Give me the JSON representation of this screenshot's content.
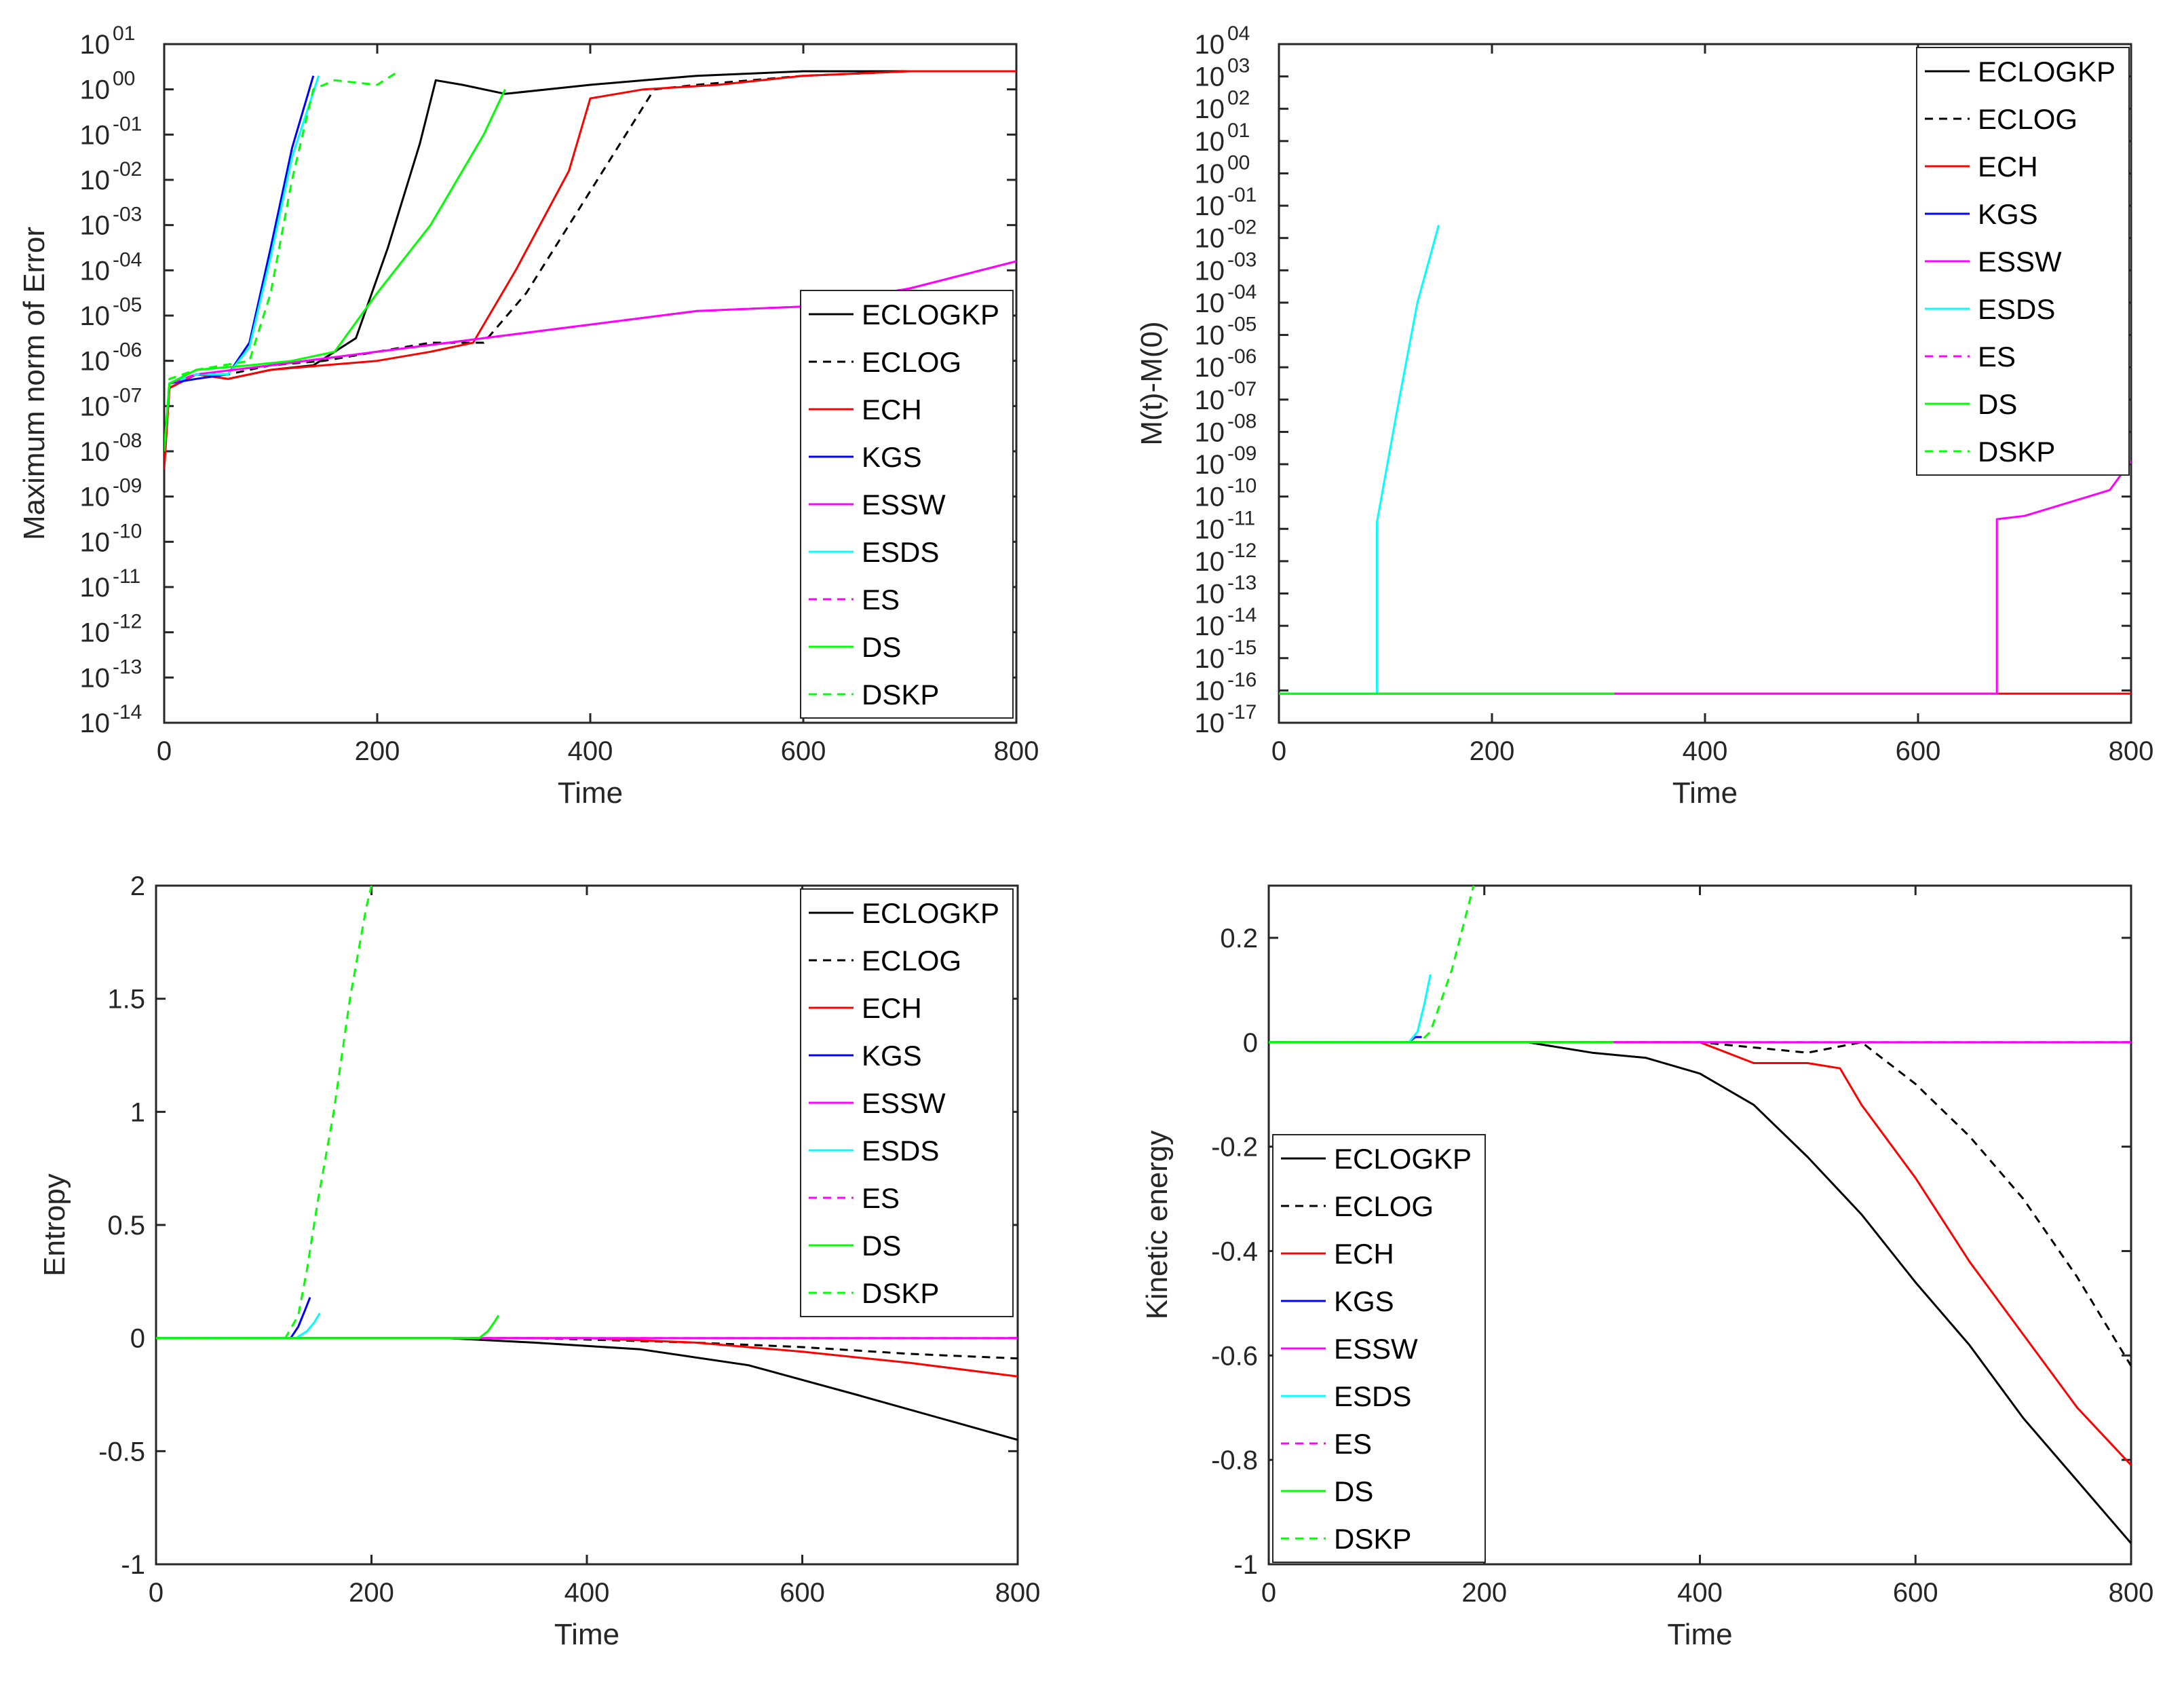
{
  "series_styles": [
    {
      "name": "ECLOGKP",
      "color": "#000000",
      "dash": ""
    },
    {
      "name": "ECLOG",
      "color": "#000000",
      "dash": "12,9"
    },
    {
      "name": "ECH",
      "color": "#ff0000",
      "dash": ""
    },
    {
      "name": "KGS",
      "color": "#0000ff",
      "dash": ""
    },
    {
      "name": "ESSW",
      "color": "#ff00ff",
      "dash": ""
    },
    {
      "name": "ESDS",
      "color": "#00ffff",
      "dash": ""
    },
    {
      "name": "ES",
      "color": "#ff00ff",
      "dash": "12,9"
    },
    {
      "name": "DS",
      "color": "#00ff00",
      "dash": ""
    },
    {
      "name": "DSKP",
      "color": "#00ff00",
      "dash": "12,9"
    }
  ],
  "chart_data": [
    {
      "type": "line",
      "scale": "log",
      "title": "",
      "xlabel": "Time",
      "ylabel": "Maximum norm of Error",
      "xlim": [
        0,
        800
      ],
      "xticks": [
        "0",
        "200",
        "400",
        "600",
        "800"
      ],
      "ylim": [
        -14,
        1
      ],
      "ytick_exponents": [
        "-14",
        "-13",
        "-12",
        "-11",
        "-10",
        "-09",
        "-08",
        "-07",
        "-06",
        "-05",
        "-04",
        "-03",
        "-02",
        "-01",
        "00",
        "01"
      ],
      "ytick_base": "10",
      "legend": {
        "location": "lower-right",
        "entries": [
          "ECLOGKP",
          "ECLOG",
          "ECH",
          "KGS",
          "ESSW",
          "ESDS",
          "ES",
          "DS",
          "DSKP"
        ]
      },
      "series": [
        {
          "name": "ECLOGKP",
          "x": [
            0,
            5,
            30,
            60,
            100,
            140,
            180,
            210,
            240,
            255,
            280,
            320,
            400,
            500,
            600,
            700,
            800
          ],
          "values": [
            -8.2,
            -6.6,
            -6.3,
            -6.4,
            -6.2,
            -6.1,
            -5.5,
            -3.5,
            -1.2,
            0.2,
            0.1,
            -0.1,
            0.1,
            0.3,
            0.4,
            0.4,
            0.4
          ]
        },
        {
          "name": "ECLOG",
          "x": [
            0,
            5,
            30,
            60,
            100,
            150,
            200,
            250,
            300,
            340,
            380,
            420,
            460,
            500,
            600,
            700,
            800
          ],
          "values": [
            -8.2,
            -6.6,
            -6.3,
            -6.3,
            -6.1,
            -6.0,
            -5.8,
            -5.6,
            -5.6,
            -4.5,
            -3.0,
            -1.5,
            0.0,
            0.1,
            0.3,
            0.4,
            0.4
          ]
        },
        {
          "name": "ECH",
          "x": [
            0,
            5,
            30,
            60,
            100,
            150,
            200,
            250,
            290,
            330,
            380,
            400,
            450,
            520,
            600,
            700,
            800
          ],
          "values": [
            -8.4,
            -6.6,
            -6.3,
            -6.4,
            -6.2,
            -6.1,
            -6.0,
            -5.8,
            -5.6,
            -4.0,
            -1.8,
            -0.2,
            0.0,
            0.1,
            0.3,
            0.4,
            0.4
          ]
        },
        {
          "name": "KGS",
          "x": [
            0,
            5,
            30,
            60,
            80,
            100,
            120,
            140
          ],
          "values": [
            -8.0,
            -6.5,
            -6.4,
            -6.3,
            -5.6,
            -3.5,
            -1.3,
            0.3
          ]
        },
        {
          "name": "ESSW",
          "x": [
            0,
            5,
            30,
            100,
            200,
            300,
            400,
            500,
            600,
            700,
            800
          ],
          "values": [
            -8.0,
            -6.5,
            -6.3,
            -6.1,
            -5.8,
            -5.5,
            -5.2,
            -4.9,
            -4.8,
            -4.4,
            -3.8
          ]
        },
        {
          "name": "ESDS",
          "x": [
            0,
            5,
            30,
            60,
            80,
            100,
            120,
            145
          ],
          "values": [
            -8.0,
            -6.5,
            -6.3,
            -6.3,
            -5.7,
            -3.7,
            -1.5,
            0.3
          ]
        },
        {
          "name": "ES",
          "x": [
            0,
            5,
            30,
            100,
            200,
            300,
            400,
            500,
            600,
            700,
            800
          ],
          "values": [
            -8.0,
            -6.5,
            -6.3,
            -6.1,
            -5.8,
            -5.5,
            -5.2,
            -4.9,
            -4.8,
            -4.4,
            -3.8
          ]
        },
        {
          "name": "DS",
          "x": [
            0,
            5,
            30,
            80,
            120,
            160,
            200,
            250,
            300,
            320
          ],
          "values": [
            -8.0,
            -6.5,
            -6.2,
            -6.1,
            -6.0,
            -5.8,
            -4.5,
            -3.0,
            -1.0,
            0.0
          ]
        },
        {
          "name": "DSKP",
          "x": [
            0,
            5,
            30,
            80,
            100,
            120,
            140,
            160,
            200,
            220
          ],
          "values": [
            -8.0,
            -6.4,
            -6.2,
            -6.0,
            -4.5,
            -2.0,
            0.0,
            0.2,
            0.1,
            0.4
          ]
        }
      ]
    },
    {
      "type": "line",
      "scale": "log",
      "title": "",
      "xlabel": "Time",
      "ylabel": "M(t)-M(0)",
      "xlim": [
        0,
        800
      ],
      "xticks": [
        "0",
        "200",
        "400",
        "600",
        "800"
      ],
      "ylim": [
        -17,
        4
      ],
      "ytick_exponents": [
        "-17",
        "-16",
        "-15",
        "-14",
        "-13",
        "-12",
        "-11",
        "-10",
        "-09",
        "-08",
        "-07",
        "-06",
        "-05",
        "-04",
        "-03",
        "-02",
        "-01",
        "00",
        "01",
        "02",
        "03",
        "04"
      ],
      "ytick_base": "10",
      "legend": {
        "location": "top-right",
        "entries": [
          "ECLOGKP",
          "ECLOG",
          "ECH",
          "KGS",
          "ESSW",
          "ESDS",
          "ES",
          "DS",
          "DSKP"
        ]
      },
      "series": [
        {
          "name": "ECH",
          "x": [
            0,
            800
          ],
          "values": [
            -16.1,
            -16.1
          ]
        },
        {
          "name": "ESSW",
          "x": [
            0,
            674,
            674,
            700,
            720,
            740,
            760,
            780,
            800
          ],
          "values": [
            -16.1,
            -16.1,
            -10.7,
            -10.6,
            -10.4,
            -10.2,
            -10.0,
            -9.8,
            -8.9
          ]
        },
        {
          "name": "ESDS",
          "x": [
            0,
            92,
            92,
            110,
            130,
            150
          ],
          "values": [
            -16.1,
            -16.1,
            -10.8,
            -7.5,
            -4.0,
            -1.6
          ]
        },
        {
          "name": "DS",
          "x": [
            0,
            315
          ],
          "values": [
            -16.1,
            -16.1
          ]
        }
      ]
    },
    {
      "type": "line",
      "scale": "linear",
      "title": "",
      "xlabel": "Time",
      "ylabel": "Entropy",
      "xlim": [
        0,
        800
      ],
      "xticks": [
        "0",
        "200",
        "400",
        "600",
        "800"
      ],
      "ylim": [
        -1,
        2
      ],
      "yticks": [
        "-1",
        "-0.5",
        "0",
        "0.5",
        "1",
        "1.5",
        "2"
      ],
      "legend": {
        "location": "top-right",
        "entries": [
          "ECLOGKP",
          "ECLOG",
          "ECH",
          "KGS",
          "ESSW",
          "ESDS",
          "ES",
          "DS",
          "DSKP"
        ]
      },
      "series": [
        {
          "name": "ECLOGKP",
          "x": [
            0,
            270,
            350,
            450,
            550,
            650,
            800
          ],
          "values": [
            0,
            0,
            -0.02,
            -0.05,
            -0.12,
            -0.25,
            -0.45
          ]
        },
        {
          "name": "ECLOG",
          "x": [
            0,
            350,
            500,
            600,
            700,
            800
          ],
          "values": [
            0,
            0,
            -0.02,
            -0.04,
            -0.07,
            -0.09
          ]
        },
        {
          "name": "ECH",
          "x": [
            0,
            400,
            500,
            600,
            700,
            800
          ],
          "values": [
            0,
            0,
            -0.02,
            -0.06,
            -0.11,
            -0.17
          ]
        },
        {
          "name": "KGS",
          "x": [
            0,
            125,
            132,
            138,
            143
          ],
          "values": [
            0,
            0,
            0.05,
            0.12,
            0.18
          ]
        },
        {
          "name": "ESSW",
          "x": [
            0,
            800
          ],
          "values": [
            0,
            0
          ]
        },
        {
          "name": "ESDS",
          "x": [
            0,
            130,
            140,
            147,
            152
          ],
          "values": [
            0,
            0,
            0.03,
            0.07,
            0.11
          ]
        },
        {
          "name": "ES",
          "x": [
            0,
            800
          ],
          "values": [
            0,
            0
          ]
        },
        {
          "name": "DS",
          "x": [
            0,
            300,
            308,
            314,
            318
          ],
          "values": [
            0,
            0,
            0.03,
            0.07,
            0.1
          ]
        },
        {
          "name": "DSKP",
          "x": [
            0,
            120,
            132,
            140,
            150,
            165,
            180,
            195,
            200
          ],
          "values": [
            0,
            0,
            0.1,
            0.3,
            0.6,
            1.0,
            1.5,
            1.9,
            2.0
          ]
        }
      ]
    },
    {
      "type": "line",
      "scale": "linear",
      "title": "",
      "xlabel": "Time",
      "ylabel": "Kinetic energy",
      "xlim": [
        0,
        800
      ],
      "xticks": [
        "0",
        "200",
        "400",
        "600",
        "800"
      ],
      "ylim": [
        -1,
        0.3
      ],
      "yticks": [
        "-1",
        "-0.8",
        "-0.6",
        "-0.4",
        "-0.2",
        "0",
        "0.2"
      ],
      "legend": {
        "location": "bottom-left",
        "entries": [
          "ECLOGKP",
          "ECLOG",
          "ECH",
          "KGS",
          "ESSW",
          "ESDS",
          "ES",
          "DS",
          "DSKP"
        ]
      },
      "series": [
        {
          "name": "ECLOGKP",
          "x": [
            0,
            240,
            300,
            350,
            400,
            450,
            500,
            550,
            600,
            650,
            700,
            750,
            800
          ],
          "values": [
            0,
            0,
            -0.02,
            -0.03,
            -0.06,
            -0.12,
            -0.22,
            -0.33,
            -0.46,
            -0.58,
            -0.72,
            -0.84,
            -0.96
          ]
        },
        {
          "name": "ECLOG",
          "x": [
            0,
            350,
            400,
            450,
            500,
            550,
            600,
            650,
            700,
            750,
            800
          ],
          "values": [
            0,
            0,
            0,
            -0.01,
            -0.02,
            0,
            -0.08,
            -0.18,
            -0.3,
            -0.45,
            -0.62
          ]
        },
        {
          "name": "ECH",
          "x": [
            0,
            400,
            450,
            500,
            530,
            550,
            600,
            650,
            700,
            750,
            800
          ],
          "values": [
            0,
            0,
            -0.04,
            -0.04,
            -0.05,
            -0.12,
            -0.26,
            -0.42,
            -0.56,
            -0.7,
            -0.81
          ]
        },
        {
          "name": "KGS",
          "x": [
            0,
            130,
            136,
            142
          ],
          "values": [
            0,
            0,
            0.01,
            0.01
          ]
        },
        {
          "name": "ESSW",
          "x": [
            0,
            800
          ],
          "values": [
            0,
            0
          ]
        },
        {
          "name": "ESDS",
          "x": [
            0,
            130,
            138,
            144,
            150
          ],
          "values": [
            0,
            0,
            0.02,
            0.07,
            0.13
          ]
        },
        {
          "name": "ES",
          "x": [
            0,
            800
          ],
          "values": [
            0,
            0
          ]
        },
        {
          "name": "DS",
          "x": [
            0,
            320
          ],
          "values": [
            0,
            0
          ]
        },
        {
          "name": "DSKP",
          "x": [
            0,
            140,
            150,
            160,
            170,
            180,
            190
          ],
          "values": [
            0,
            0,
            0.02,
            0.08,
            0.14,
            0.22,
            0.3
          ]
        }
      ]
    }
  ]
}
